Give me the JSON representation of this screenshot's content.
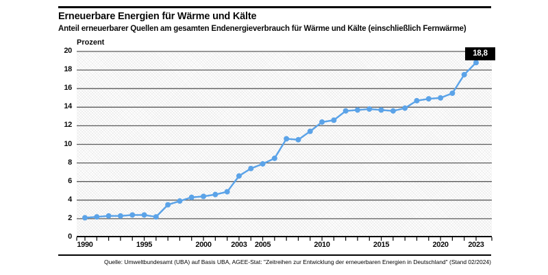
{
  "header": {
    "title": "Erneuerbare Energien für Wärme und Kälte",
    "subtitle": "Anteil erneuerbarer Quellen am gesamten Endenergieverbrauch für Wärme und Kälte (einschließlich Fernwärme)"
  },
  "chart_data": {
    "type": "line",
    "title": "Erneuerbare Energien für Wärme und Kälte",
    "ylabel": "Prozent",
    "ylim": [
      0,
      20
    ],
    "ytick_step": 2,
    "grid": true,
    "x_start": 1990,
    "x_end": 2023,
    "x_tick_labels": [
      1990,
      1995,
      2000,
      2003,
      2005,
      2010,
      2015,
      2020,
      2023
    ],
    "years": [
      1990,
      1991,
      1992,
      1993,
      1994,
      1995,
      1996,
      1997,
      1998,
      1999,
      2000,
      2001,
      2002,
      2003,
      2004,
      2005,
      2006,
      2007,
      2008,
      2009,
      2010,
      2011,
      2012,
      2013,
      2014,
      2015,
      2016,
      2017,
      2018,
      2019,
      2020,
      2021,
      2022,
      2023
    ],
    "values": [
      2.1,
      2.2,
      2.3,
      2.3,
      2.4,
      2.4,
      2.2,
      3.5,
      3.9,
      4.3,
      4.4,
      4.6,
      4.9,
      6.6,
      7.4,
      7.9,
      8.5,
      10.6,
      10.5,
      11.4,
      12.4,
      12.6,
      13.6,
      13.7,
      13.8,
      13.7,
      13.6,
      13.9,
      14.7,
      14.9,
      15.0,
      15.5,
      17.5,
      18.8
    ],
    "last_value_label": "18,8",
    "line_color": "#5BA3E8",
    "grid_color": "#5a5a5a",
    "axis_color": "#000000",
    "badge_bg": "#000000",
    "badge_fg": "#ffffff"
  },
  "footer": {
    "source": "Quelle: Umweltbundesamt (UBA) auf Basis UBA, AGEE-Stat: \"Zeitreihen zur Entwicklung der erneuerbaren Energien in Deutschland\" (Stand 02/2024)"
  }
}
